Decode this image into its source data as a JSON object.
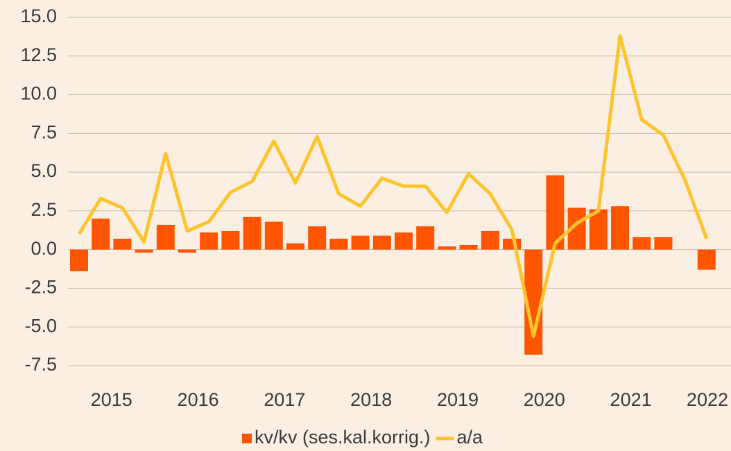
{
  "chart_data": {
    "type": "bar-line",
    "categories": [
      null,
      "2015",
      null,
      null,
      null,
      "2016",
      null,
      null,
      null,
      "2017",
      null,
      null,
      null,
      "2018",
      null,
      null,
      null,
      "2019",
      null,
      null,
      null,
      "2020",
      null,
      null,
      null,
      "2021",
      null,
      null,
      null,
      "2022"
    ],
    "series": [
      {
        "name": "kv/kv (ses.kal.korrig.)",
        "type": "bar",
        "color": "#ff5500",
        "values": [
          -1.4,
          2.0,
          0.7,
          -0.2,
          1.6,
          -0.2,
          1.1,
          1.2,
          2.1,
          1.8,
          0.4,
          1.5,
          0.7,
          0.9,
          0.9,
          1.1,
          1.5,
          0.2,
          0.3,
          1.2,
          0.7,
          -6.8,
          4.8,
          2.7,
          2.6,
          2.8,
          0.8,
          0.8,
          null,
          -1.3
        ]
      },
      {
        "name": "a/a",
        "type": "line",
        "color": "#fcc52f",
        "values": [
          1.0,
          3.3,
          2.7,
          0.5,
          6.2,
          1.2,
          1.8,
          3.7,
          4.4,
          7.0,
          4.3,
          7.3,
          3.6,
          2.8,
          4.6,
          4.1,
          4.1,
          2.4,
          4.9,
          3.6,
          1.3,
          -5.6,
          0.4,
          1.7,
          2.5,
          13.8,
          8.4,
          7.4,
          4.5,
          0.7
        ]
      }
    ],
    "ylim": [
      -7.5,
      15
    ],
    "yticks": [
      {
        "value": -7.5,
        "label": "-7.5"
      },
      {
        "value": -5,
        "label": "-5.0"
      },
      {
        "value": -2.5,
        "label": "-2.5"
      },
      {
        "value": 0,
        "label": "0.0"
      },
      {
        "value": 2.5,
        "label": "2.5"
      },
      {
        "value": 5,
        "label": "5.0"
      },
      {
        "value": 7.5,
        "label": "7.5"
      },
      {
        "value": 10,
        "label": "10.0"
      },
      {
        "value": 12.5,
        "label": "12.5"
      },
      {
        "value": 15,
        "label": "15.0"
      }
    ],
    "grid": true,
    "legend": "bottom"
  }
}
